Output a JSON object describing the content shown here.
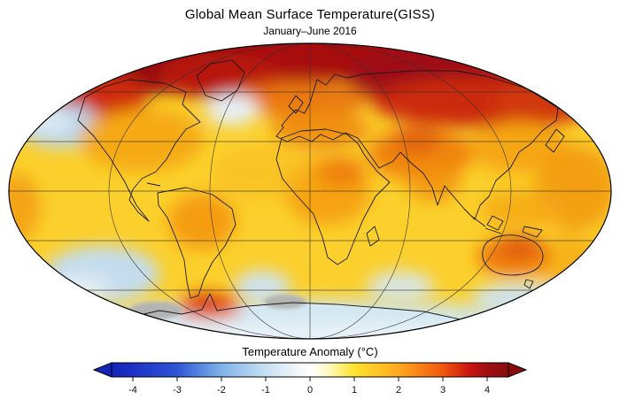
{
  "header": {
    "title": "Global Mean Surface Temperature(GISS)",
    "subtitle": "January–June 2016"
  },
  "colorbar": {
    "label": "Temperature Anomaly (°C)",
    "ticks": [
      "-4",
      "-3",
      "-2",
      "-1",
      "0",
      "1",
      "2",
      "3",
      "4"
    ],
    "left_arrow_color": "#1524b8",
    "right_arrow_color": "#8a0c11",
    "gradient": [
      {
        "value": -4.5,
        "color": "#1524b8"
      },
      {
        "value": -4.0,
        "color": "#1e31c6"
      },
      {
        "value": -3.0,
        "color": "#2f55d6"
      },
      {
        "value": -2.0,
        "color": "#7fb2e8"
      },
      {
        "value": -1.0,
        "color": "#c6e0f2"
      },
      {
        "value": -0.35,
        "color": "#eef5f9"
      },
      {
        "value": 0.0,
        "color": "#ffffff"
      },
      {
        "value": 0.35,
        "color": "#ffface"
      },
      {
        "value": 1.0,
        "color": "#ffe32e"
      },
      {
        "value": 2.0,
        "color": "#ffa81f"
      },
      {
        "value": 3.0,
        "color": "#f2570e"
      },
      {
        "value": 3.6,
        "color": "#cc1512"
      },
      {
        "value": 4.0,
        "color": "#a00e12"
      },
      {
        "value": 4.5,
        "color": "#8a0c11"
      }
    ]
  },
  "map": {
    "base_color": "#fbd02c",
    "no_data_color": "#b3b3b3",
    "ocean_cold_color": "#c3dcee",
    "arctic_hot_color": "#a30d12",
    "outline_color": "#000000"
  },
  "chart_data": {
    "type": "heatmap",
    "title": "Global Mean Surface Temperature(GISS)",
    "subtitle": "January–June 2016",
    "units": "°C",
    "legend_label": "Temperature Anomaly (°C)",
    "scale_range": [
      -4,
      4
    ],
    "regions": [
      {
        "region": "Arctic Ocean and high northern latitudes",
        "anomaly_c": 4.0
      },
      {
        "region": "Siberia / northern Russia",
        "anomaly_c": 3.5
      },
      {
        "region": "Greenland and northeastern Canada",
        "anomaly_c": 3.0
      },
      {
        "region": "Alaska and northwestern North America",
        "anomaly_c": 3.0
      },
      {
        "region": "Europe and Mediterranean",
        "anomaly_c": 2.0
      },
      {
        "region": "Middle East and Central Asia",
        "anomaly_c": 2.0
      },
      {
        "region": "Contiguous United States",
        "anomaly_c": 1.5
      },
      {
        "region": "North Atlantic south of Greenland (cold blob)",
        "anomaly_c": -0.5
      },
      {
        "region": "Northeast Pacific patch",
        "anomaly_c": -1.0
      },
      {
        "region": "Tropical and northern Africa",
        "anomaly_c": 2.0
      },
      {
        "region": "Central South America",
        "anomaly_c": 1.5
      },
      {
        "region": "India and Southeast Asia",
        "anomaly_c": 1.5
      },
      {
        "region": "Western tropical Pacific",
        "anomaly_c": 1.5
      },
      {
        "region": "Australia",
        "anomaly_c": 2.0
      },
      {
        "region": "Southern mid-latitude oceans",
        "anomaly_c": -0.5
      },
      {
        "region": "Antarctic Peninsula region",
        "anomaly_c": 2.5
      },
      {
        "region": "Coastal Antarctica (gray areas)",
        "anomaly_c": null
      }
    ]
  }
}
